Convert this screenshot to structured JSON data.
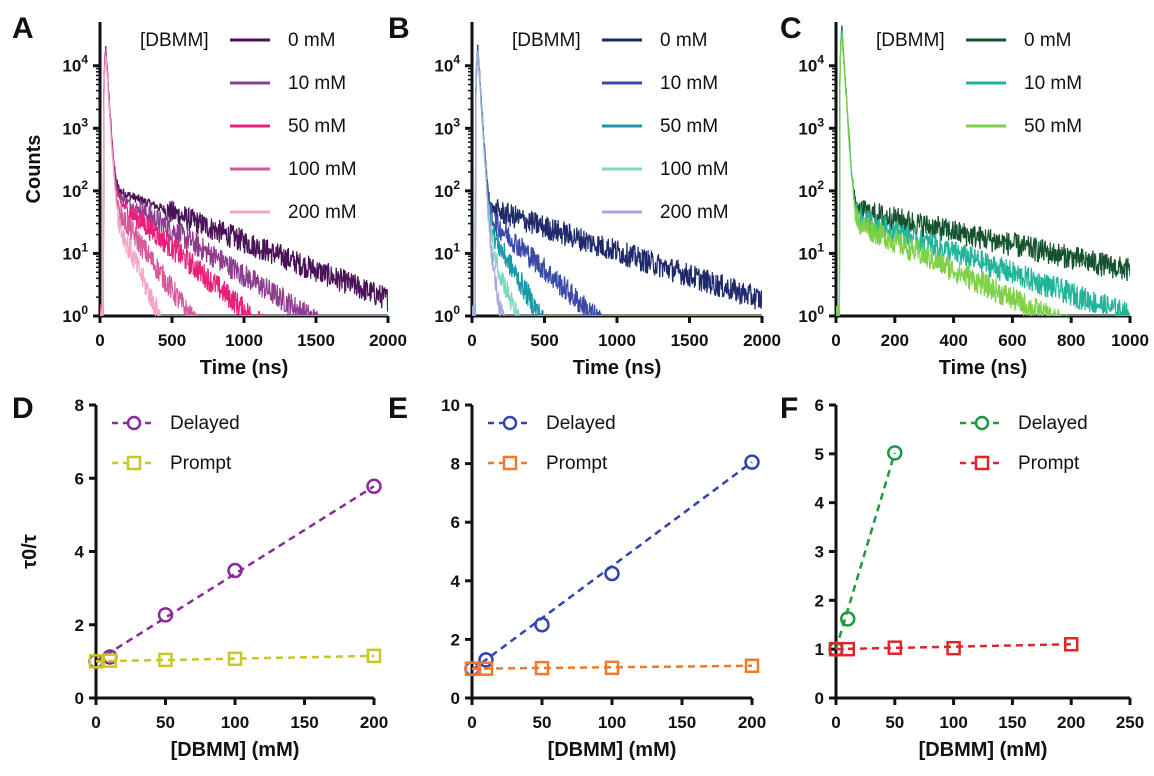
{
  "chart_data": [
    {
      "panel": "A",
      "type": "line",
      "xlabel": "Time (ns)",
      "ylabel": "Counts",
      "xlim": [
        0,
        2000
      ],
      "ylim": [
        1,
        50000
      ],
      "yscale": "log",
      "xticks": [
        0,
        500,
        1000,
        1500,
        2000
      ],
      "yticks": [
        "10^0",
        "10^1",
        "10^2",
        "10^3",
        "10^4"
      ],
      "legend_title": "[DBMM]",
      "legend": "top-right",
      "series": [
        {
          "name": "0 mM",
          "color": "#4a1259",
          "peak": 20000,
          "tail": 120,
          "decay_ns": 470
        },
        {
          "name": "10 mM",
          "color": "#8e3d8e",
          "peak": 19000,
          "tail": 110,
          "decay_ns": 300
        },
        {
          "name": "50 mM",
          "color": "#e8207a",
          "peak": 18000,
          "tail": 100,
          "decay_ns": 220
        },
        {
          "name": "100 mM",
          "color": "#d45a9a",
          "peak": 17000,
          "tail": 90,
          "decay_ns": 130
        },
        {
          "name": "200 mM",
          "color": "#f5a3c7",
          "peak": 16000,
          "tail": 80,
          "decay_ns": 85
        }
      ]
    },
    {
      "panel": "B",
      "type": "line",
      "xlabel": "Time (ns)",
      "ylabel": "",
      "xlim": [
        0,
        2000
      ],
      "ylim": [
        1,
        50000
      ],
      "yscale": "log",
      "xticks": [
        0,
        500,
        1000,
        1500,
        2000
      ],
      "yticks": [
        "10^0",
        "10^1",
        "10^2",
        "10^3",
        "10^4"
      ],
      "legend_title": "[DBMM]",
      "legend": "top-right",
      "series": [
        {
          "name": "0 mM",
          "color": "#1f2a6b",
          "peak": 20000,
          "tail": 60,
          "decay_ns": 560
        },
        {
          "name": "10 mM",
          "color": "#3a4aa8",
          "peak": 19000,
          "tail": 55,
          "decay_ns": 200
        },
        {
          "name": "50 mM",
          "color": "#1a9aa8",
          "peak": 18000,
          "tail": 50,
          "decay_ns": 110
        },
        {
          "name": "100 mM",
          "color": "#7fd6c2",
          "peak": 17000,
          "tail": 45,
          "decay_ns": 70
        },
        {
          "name": "200 mM",
          "color": "#a8a6dc",
          "peak": 16000,
          "tail": 40,
          "decay_ns": 45
        }
      ]
    },
    {
      "panel": "C",
      "type": "line",
      "xlabel": "Time (ns)",
      "ylabel": "",
      "xlim": [
        0,
        1000
      ],
      "ylim": [
        1,
        50000
      ],
      "yscale": "log",
      "xticks": [
        0,
        200,
        400,
        600,
        800,
        1000
      ],
      "yticks": [
        "10^0",
        "10^1",
        "10^2",
        "10^3",
        "10^4"
      ],
      "legend_title": "[DBMM]",
      "legend": "top-right",
      "series": [
        {
          "name": "0 mM",
          "color": "#14532d",
          "peak": 40000,
          "tail": 55,
          "decay_ns": 420
        },
        {
          "name": "10 mM",
          "color": "#22b49a",
          "peak": 38000,
          "tail": 45,
          "decay_ns": 260
        },
        {
          "name": "50 mM",
          "color": "#7fd14a",
          "peak": 36000,
          "tail": 40,
          "decay_ns": 190
        }
      ]
    },
    {
      "panel": "D",
      "type": "scatter",
      "xlabel": "[DBMM] (mM)",
      "ylabel": "τ0/τ",
      "xlim": [
        0,
        200
      ],
      "ylim": [
        0,
        8
      ],
      "xticks": [
        0,
        50,
        100,
        150,
        200
      ],
      "yticks": [
        0,
        2,
        4,
        6,
        8
      ],
      "legend": "top-left",
      "series": [
        {
          "name": "Delayed",
          "marker": "circle",
          "color": "#8b2a9b",
          "x": [
            0,
            10,
            50,
            100,
            200
          ],
          "y": [
            1.0,
            1.12,
            2.27,
            3.48,
            5.78
          ],
          "fit": [
            1.0,
            5.78
          ]
        },
        {
          "name": "Prompt",
          "marker": "square",
          "color": "#c7c72a",
          "x": [
            0,
            10,
            50,
            100,
            200
          ],
          "y": [
            1.0,
            1.02,
            1.04,
            1.07,
            1.15
          ],
          "fit": [
            1.0,
            1.15
          ]
        }
      ]
    },
    {
      "panel": "E",
      "type": "scatter",
      "xlabel": "[DBMM] (mM)",
      "ylabel": "",
      "xlim": [
        0,
        200
      ],
      "ylim": [
        0,
        10
      ],
      "xticks": [
        0,
        50,
        100,
        150,
        200
      ],
      "yticks": [
        0,
        2,
        4,
        6,
        8,
        10
      ],
      "legend": "top-left",
      "series": [
        {
          "name": "Delayed",
          "marker": "circle",
          "color": "#3344b0",
          "x": [
            0,
            10,
            50,
            100,
            200
          ],
          "y": [
            1.0,
            1.3,
            2.5,
            4.25,
            8.05
          ],
          "fit": [
            0.95,
            8.05
          ]
        },
        {
          "name": "Prompt",
          "marker": "square",
          "color": "#f07a2a",
          "x": [
            0,
            10,
            50,
            100,
            200
          ],
          "y": [
            1.0,
            1.0,
            1.02,
            1.03,
            1.1
          ],
          "fit": [
            1.0,
            1.1
          ]
        }
      ]
    },
    {
      "panel": "F",
      "type": "scatter",
      "xlabel": "[DBMM] (mM)",
      "ylabel": "",
      "xlim": [
        0,
        250
      ],
      "ylim": [
        0,
        6
      ],
      "xticks": [
        0,
        50,
        100,
        150,
        200,
        250
      ],
      "yticks": [
        0,
        1,
        2,
        3,
        4,
        5,
        6
      ],
      "legend": "top-right",
      "series": [
        {
          "name": "Delayed",
          "marker": "circle",
          "color": "#1e9a40",
          "x": [
            0,
            10,
            50
          ],
          "y": [
            1.0,
            1.62,
            5.02
          ],
          "fit_x": [
            0,
            50
          ],
          "fit": [
            1.0,
            5.02
          ]
        },
        {
          "name": "Prompt",
          "marker": "square",
          "color": "#e0262a",
          "x": [
            0,
            10,
            50,
            100,
            200
          ],
          "y": [
            1.0,
            1.0,
            1.03,
            1.02,
            1.1
          ],
          "fit_x": [
            0,
            200
          ],
          "fit": [
            1.0,
            1.1
          ]
        }
      ]
    }
  ]
}
